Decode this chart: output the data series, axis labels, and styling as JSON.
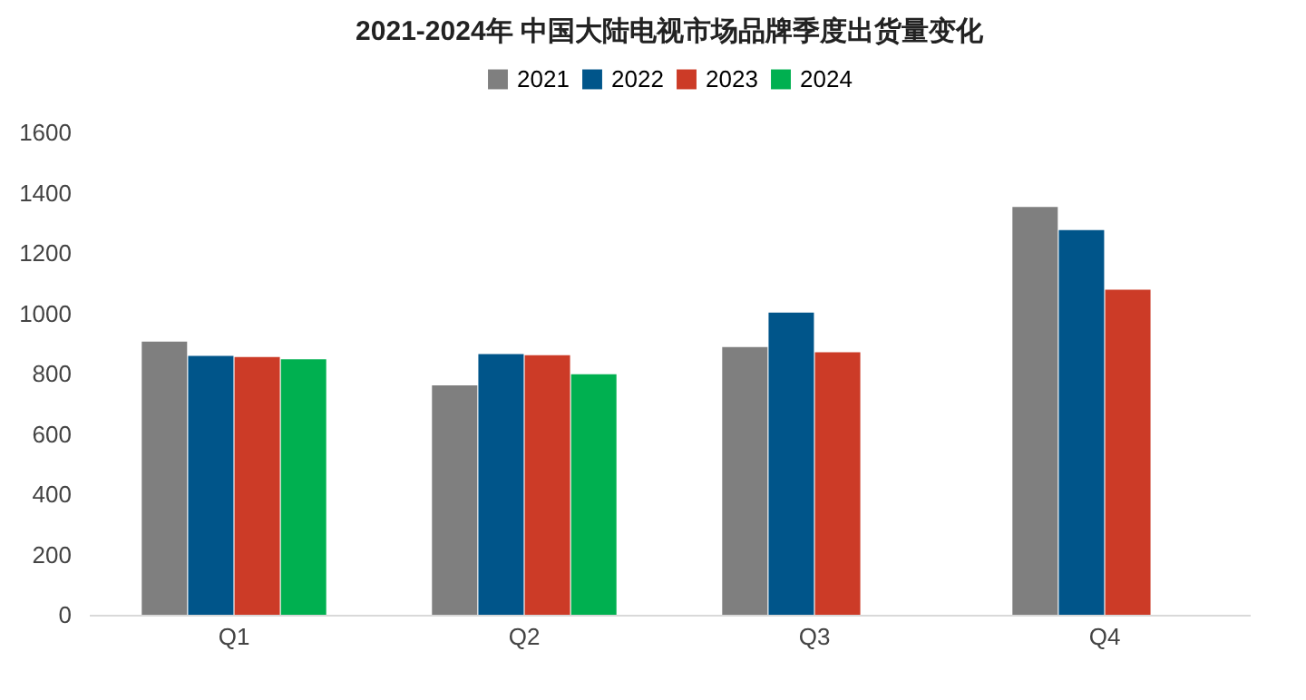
{
  "chart_data": {
    "type": "bar",
    "title": "2021-2024年 中国大陆电视市场品牌季度出货量变化",
    "categories": [
      "Q1",
      "Q2",
      "Q3",
      "Q4"
    ],
    "series": [
      {
        "name": "2021",
        "color": "#7f7f7f",
        "values": [
          906,
          761,
          888,
          1353
        ]
      },
      {
        "name": "2022",
        "color": "#00558a",
        "values": [
          859,
          865,
          1002,
          1276
        ]
      },
      {
        "name": "2023",
        "color": "#cc3b27",
        "values": [
          855,
          861,
          871,
          1078
        ]
      },
      {
        "name": "2024",
        "color": "#00b050",
        "values": [
          847,
          798,
          null,
          null
        ]
      }
    ],
    "ylim": [
      0,
      1600
    ],
    "yticks": [
      0,
      200,
      400,
      600,
      800,
      1000,
      1200,
      1400,
      1600
    ],
    "grid": false,
    "legend": "top"
  }
}
